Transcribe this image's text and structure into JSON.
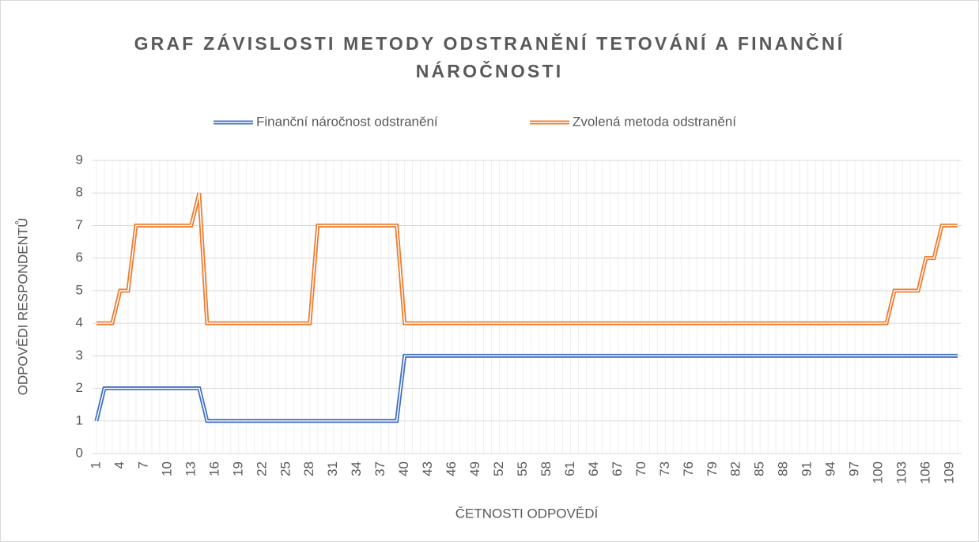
{
  "chart_data": {
    "type": "line",
    "title": "GRAF ZÁVISLOSTI METODY ODSTRANĚNÍ TETOVÁNÍ A FINANČNÍ NÁROČNOSTI",
    "x_label": "ČETNOSTI ODPOVĚDÍ",
    "y_label": "ODPOVĚDI RESPONDENTŮ",
    "categories": [
      "1",
      null,
      null,
      "4",
      null,
      null,
      "7",
      null,
      null,
      "10",
      null,
      null,
      "13",
      null,
      null,
      "16",
      null,
      null,
      "19",
      null,
      null,
      "22",
      null,
      null,
      "25",
      null,
      null,
      "28",
      null,
      null,
      "31",
      null,
      null,
      "34",
      null,
      null,
      "37",
      null,
      null,
      "40",
      null,
      null,
      "43",
      null,
      null,
      "46",
      null,
      null,
      "49",
      null,
      null,
      "52",
      null,
      null,
      "55",
      null,
      null,
      "58",
      null,
      null,
      "61",
      null,
      null,
      "64",
      null,
      null,
      "67",
      null,
      null,
      "70",
      null,
      null,
      "73",
      null,
      null,
      "76",
      null,
      null,
      "79",
      null,
      null,
      "82",
      null,
      null,
      "85",
      null,
      null,
      "88",
      null,
      null,
      "91",
      null,
      null,
      "94",
      null,
      null,
      "97",
      null,
      null,
      "100",
      null,
      null,
      "103",
      null,
      null,
      "106",
      null,
      null,
      "109",
      null
    ],
    "series": [
      {
        "name": "Finanční náročnost odstranění",
        "color": "#4472c4",
        "values": [
          1,
          2,
          2,
          2,
          2,
          2,
          2,
          2,
          2,
          2,
          2,
          2,
          2,
          2,
          1,
          1,
          1,
          1,
          1,
          1,
          1,
          1,
          1,
          1,
          1,
          1,
          1,
          1,
          1,
          1,
          1,
          1,
          1,
          1,
          1,
          1,
          1,
          1,
          1,
          3,
          3,
          3,
          3,
          3,
          3,
          3,
          3,
          3,
          3,
          3,
          3,
          3,
          3,
          3,
          3,
          3,
          3,
          3,
          3,
          3,
          3,
          3,
          3,
          3,
          3,
          3,
          3,
          3,
          3,
          3,
          3,
          3,
          3,
          3,
          3,
          3,
          3,
          3,
          3,
          3,
          3,
          3,
          3,
          3,
          3,
          3,
          3,
          3,
          3,
          3,
          3,
          3,
          3,
          3,
          3,
          3,
          3,
          3,
          3,
          3,
          3,
          3,
          3,
          3,
          3,
          3,
          3,
          3,
          3,
          3
        ]
      },
      {
        "name": "Zvolená metoda odstranění",
        "color": "#ed7d31",
        "values": [
          4,
          4,
          4,
          5,
          5,
          7,
          7,
          7,
          7,
          7,
          7,
          7,
          7,
          8,
          4,
          4,
          4,
          4,
          4,
          4,
          4,
          4,
          4,
          4,
          4,
          4,
          4,
          4,
          7,
          7,
          7,
          7,
          7,
          7,
          7,
          7,
          7,
          7,
          7,
          4,
          4,
          4,
          4,
          4,
          4,
          4,
          4,
          4,
          4,
          4,
          4,
          4,
          4,
          4,
          4,
          4,
          4,
          4,
          4,
          4,
          4,
          4,
          4,
          4,
          4,
          4,
          4,
          4,
          4,
          4,
          4,
          4,
          4,
          4,
          4,
          4,
          4,
          4,
          4,
          4,
          4,
          4,
          4,
          4,
          4,
          4,
          4,
          4,
          4,
          4,
          4,
          4,
          4,
          4,
          4,
          4,
          4,
          4,
          4,
          4,
          4,
          5,
          5,
          5,
          5,
          6,
          6,
          7,
          7,
          7
        ]
      }
    ],
    "ylim": [
      0,
      9
    ],
    "yticks": [
      0,
      1,
      2,
      3,
      4,
      5,
      6,
      7,
      8,
      9
    ],
    "grid": true
  }
}
